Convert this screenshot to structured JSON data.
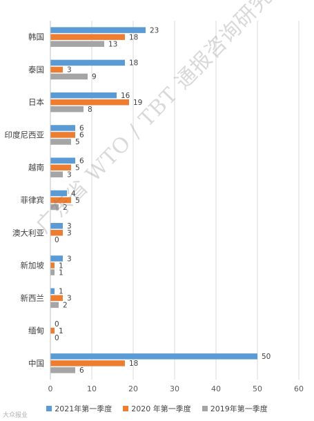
{
  "chart_data": {
    "type": "bar",
    "orientation": "horizontal",
    "categories": [
      "韩国",
      "泰国",
      "日本",
      "印度尼西亚",
      "越南",
      "菲律宾",
      "澳大利亚",
      "新加坡",
      "新西兰",
      "缅甸",
      "中国"
    ],
    "series": [
      {
        "name": "2021年第一季度",
        "color": "#5b9bd5",
        "values": [
          23,
          18,
          16,
          6,
          6,
          4,
          3,
          3,
          1,
          0,
          50
        ]
      },
      {
        "name": "2020 年第一季度",
        "color": "#ed7d31",
        "values": [
          18,
          3,
          19,
          6,
          5,
          5,
          3,
          1,
          3,
          1,
          18
        ]
      },
      {
        "name": "2019年第一季度",
        "color": "#a5a5a5",
        "values": [
          13,
          9,
          8,
          5,
          3,
          2,
          0,
          1,
          2,
          0,
          6
        ]
      }
    ],
    "xlim": [
      0,
      60
    ],
    "xticks": [
      0,
      10,
      20,
      30,
      40,
      50,
      60
    ],
    "grid": true,
    "legend_position": "bottom"
  },
  "watermark": "广东省 WTO / TBT 通报咨询研究中心",
  "source_mark": "大众报业"
}
